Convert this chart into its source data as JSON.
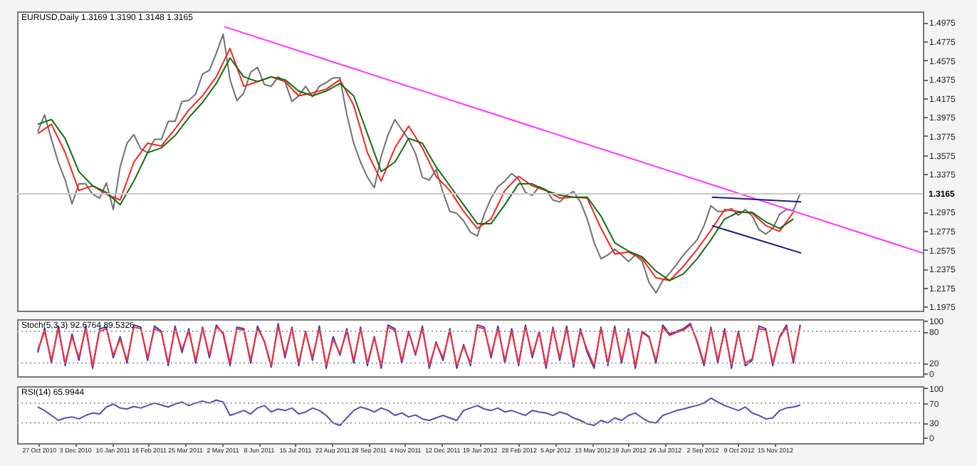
{
  "chart_data": [
    {
      "type": "line",
      "title": "EURUSD,Daily 1.3169 1.3190 1.3148 1.3165",
      "xlim": [
        "2010-10-05",
        "2013-04-15"
      ],
      "ylim": [
        1.1932,
        1.5091
      ],
      "yticks": [
        1.4975,
        1.4775,
        1.4575,
        1.4375,
        1.4175,
        1.3975,
        1.3775,
        1.3575,
        1.3375,
        1.2975,
        1.2775,
        1.2575,
        1.2375,
        1.2175,
        1.1975
      ],
      "tick_labels": "y",
      "x": [
        "2010-10-26",
        "2010-11-02",
        "2010-11-09",
        "2010-11-16",
        "2010-11-23",
        "2010-11-30",
        "2010-12-07",
        "2010-12-14",
        "2010-12-21",
        "2010-12-28",
        "2011-01-04",
        "2011-01-11",
        "2011-01-18",
        "2011-01-25",
        "2011-02-01",
        "2011-02-08",
        "2011-02-15",
        "2011-02-22",
        "2011-03-01",
        "2011-03-08",
        "2011-03-15",
        "2011-03-22",
        "2011-03-29",
        "2011-04-05",
        "2011-04-12",
        "2011-04-19",
        "2011-04-26",
        "2011-05-03",
        "2011-05-10",
        "2011-05-17",
        "2011-05-24",
        "2011-05-31",
        "2011-06-07",
        "2011-06-14",
        "2011-06-21",
        "2011-06-28",
        "2011-07-05",
        "2011-07-12",
        "2011-07-19",
        "2011-07-26",
        "2011-08-02",
        "2011-08-09",
        "2011-08-16",
        "2011-08-23",
        "2011-08-30",
        "2011-09-06",
        "2011-09-13",
        "2011-09-20",
        "2011-09-27",
        "2011-10-04",
        "2011-10-11",
        "2011-10-18",
        "2011-10-25",
        "2011-11-01",
        "2011-11-08",
        "2011-11-15",
        "2011-11-22",
        "2011-11-29",
        "2011-12-06",
        "2011-12-13",
        "2011-12-20",
        "2011-12-27",
        "2012-01-03",
        "2012-01-10",
        "2012-01-17",
        "2012-01-24",
        "2012-01-31",
        "2012-02-07",
        "2012-02-14",
        "2012-02-21",
        "2012-02-28",
        "2012-03-06",
        "2012-03-13",
        "2012-03-20",
        "2012-03-27",
        "2012-04-03",
        "2012-04-10",
        "2012-04-17",
        "2012-04-24",
        "2012-05-01",
        "2012-05-08",
        "2012-05-15",
        "2012-05-22",
        "2012-05-29",
        "2012-06-05",
        "2012-06-12",
        "2012-06-19",
        "2012-06-26",
        "2012-07-03",
        "2012-07-10",
        "2012-07-17",
        "2012-07-24",
        "2012-07-31",
        "2012-08-07",
        "2012-08-14",
        "2012-08-21",
        "2012-08-28",
        "2012-09-04",
        "2012-09-11",
        "2012-09-18",
        "2012-09-25",
        "2012-10-02",
        "2012-10-09",
        "2012-10-16",
        "2012-10-23",
        "2012-10-30",
        "2012-11-06",
        "2012-11-13",
        "2012-11-20",
        "2012-11-27",
        "2012-12-04",
        "2012-12-11"
      ],
      "series": [
        {
          "color": "#707070",
          "values": [
            1.382,
            1.4,
            1.374,
            1.35,
            1.331,
            1.306,
            1.327,
            1.327,
            1.316,
            1.312,
            1.328,
            1.3,
            1.345,
            1.37,
            1.379,
            1.364,
            1.36,
            1.374,
            1.374,
            1.393,
            1.393,
            1.414,
            1.415,
            1.422,
            1.443,
            1.447,
            1.465,
            1.485,
            1.437,
            1.415,
            1.423,
            1.445,
            1.45,
            1.432,
            1.43,
            1.44,
            1.435,
            1.414,
            1.42,
            1.43,
            1.419,
            1.43,
            1.434,
            1.439,
            1.439,
            1.4,
            1.37,
            1.35,
            1.334,
            1.323,
            1.356,
            1.379,
            1.395,
            1.384,
            1.374,
            1.359,
            1.334,
            1.331,
            1.342,
            1.318,
            1.298,
            1.296,
            1.288,
            1.276,
            1.272,
            1.295,
            1.312,
            1.324,
            1.33,
            1.338,
            1.332,
            1.318,
            1.315,
            1.324,
            1.321,
            1.31,
            1.308,
            1.315,
            1.319,
            1.308,
            1.29,
            1.265,
            1.248,
            1.252,
            1.258,
            1.252,
            1.245,
            1.252,
            1.245,
            1.223,
            1.212,
            1.225,
            1.233,
            1.242,
            1.252,
            1.26,
            1.268,
            1.283,
            1.304,
            1.298,
            1.298,
            1.301,
            1.294,
            1.3,
            1.293,
            1.279,
            1.274,
            1.28,
            1.295,
            1.3,
            1.299,
            1.317
          ]
        },
        {
          "color": "#ff2020",
          "x": [
            "2010-10-26",
            "2010-11-09",
            "2010-11-23",
            "2010-12-07",
            "2010-12-21",
            "2011-01-04",
            "2011-01-18",
            "2011-02-01",
            "2011-02-15",
            "2011-03-01",
            "2011-03-15",
            "2011-03-29",
            "2011-04-12",
            "2011-04-26",
            "2011-05-10",
            "2011-05-24",
            "2011-06-07",
            "2011-06-21",
            "2011-07-05",
            "2011-07-19",
            "2011-08-02",
            "2011-08-16",
            "2011-08-30",
            "2011-09-13",
            "2011-09-27",
            "2011-10-11",
            "2011-10-25",
            "2011-11-08",
            "2011-11-22",
            "2011-12-06",
            "2011-12-20",
            "2012-01-03",
            "2012-01-17",
            "2012-01-31",
            "2012-02-14",
            "2012-02-28",
            "2012-03-13",
            "2012-03-27",
            "2012-04-10",
            "2012-04-24",
            "2012-05-08",
            "2012-05-22",
            "2012-06-05",
            "2012-06-19",
            "2012-07-03",
            "2012-07-17",
            "2012-07-31",
            "2012-08-14",
            "2012-08-28",
            "2012-09-11",
            "2012-09-25",
            "2012-10-09",
            "2012-10-23",
            "2012-11-06",
            "2012-11-20",
            "2012-12-04"
          ],
          "values": [
            1.38,
            1.39,
            1.36,
            1.32,
            1.325,
            1.316,
            1.31,
            1.35,
            1.37,
            1.367,
            1.385,
            1.405,
            1.42,
            1.44,
            1.47,
            1.43,
            1.435,
            1.44,
            1.435,
            1.42,
            1.423,
            1.427,
            1.437,
            1.41,
            1.36,
            1.33,
            1.365,
            1.388,
            1.365,
            1.335,
            1.32,
            1.298,
            1.28,
            1.29,
            1.32,
            1.335,
            1.325,
            1.32,
            1.312,
            1.313,
            1.312,
            1.28,
            1.253,
            1.255,
            1.248,
            1.228,
            1.225,
            1.24,
            1.258,
            1.278,
            1.3,
            1.298,
            1.296,
            1.283,
            1.277,
            1.297
          ]
        },
        {
          "color": "#107010",
          "x": [
            "2010-10-26",
            "2010-11-09",
            "2010-11-23",
            "2010-12-07",
            "2010-12-21",
            "2011-01-04",
            "2011-01-18",
            "2011-02-01",
            "2011-02-15",
            "2011-03-01",
            "2011-03-15",
            "2011-03-29",
            "2011-04-12",
            "2011-04-26",
            "2011-05-10",
            "2011-05-24",
            "2011-06-07",
            "2011-06-21",
            "2011-07-05",
            "2011-07-19",
            "2011-08-02",
            "2011-08-16",
            "2011-08-30",
            "2011-09-13",
            "2011-09-27",
            "2011-10-11",
            "2011-10-25",
            "2011-11-08",
            "2011-11-22",
            "2011-12-06",
            "2011-12-20",
            "2012-01-03",
            "2012-01-17",
            "2012-01-31",
            "2012-02-14",
            "2012-02-28",
            "2012-03-13",
            "2012-03-27",
            "2012-04-10",
            "2012-04-24",
            "2012-05-08",
            "2012-05-22",
            "2012-06-05",
            "2012-06-19",
            "2012-07-03",
            "2012-07-17",
            "2012-07-31",
            "2012-08-14",
            "2012-08-28",
            "2012-09-11",
            "2012-09-25",
            "2012-10-09",
            "2012-10-23",
            "2012-11-06",
            "2012-11-20",
            "2012-12-04"
          ],
          "values": [
            1.39,
            1.395,
            1.375,
            1.34,
            1.325,
            1.318,
            1.305,
            1.33,
            1.36,
            1.365,
            1.378,
            1.397,
            1.413,
            1.433,
            1.46,
            1.44,
            1.435,
            1.44,
            1.437,
            1.425,
            1.42,
            1.425,
            1.433,
            1.42,
            1.38,
            1.34,
            1.35,
            1.375,
            1.37,
            1.345,
            1.325,
            1.305,
            1.285,
            1.285,
            1.305,
            1.327,
            1.327,
            1.32,
            1.315,
            1.313,
            1.313,
            1.293,
            1.265,
            1.256,
            1.25,
            1.235,
            1.225,
            1.232,
            1.248,
            1.268,
            1.29,
            1.297,
            1.297,
            1.287,
            1.28,
            1.29
          ]
        },
        {
          "color": "#ff33ff",
          "x": [
            "2011-05-04",
            "2013-04-15"
          ],
          "values": [
            1.493,
            1.254
          ]
        },
        {
          "color": "#1a1a8c",
          "x": [
            "2012-09-12",
            "2012-12-12"
          ],
          "values": [
            1.313,
            1.308
          ]
        },
        {
          "color": "#1a1a8c",
          "x": [
            "2012-09-12",
            "2012-12-12"
          ],
          "values": [
            1.283,
            1.254
          ]
        }
      ],
      "ref_lines": [
        {
          "axis": "y",
          "value": 1.3165,
          "label": "1.3165",
          "color": "#c8c8c8"
        }
      ]
    },
    {
      "type": "line",
      "title": "Stoch(5,3,3) 92.6764 89.5326",
      "xlim": [
        "2010-10-05",
        "2013-04-15"
      ],
      "ylim": [
        -5,
        103
      ],
      "yticks": [
        0,
        20,
        80,
        100
      ],
      "tick_labels": "y",
      "x": [
        "2010-10-26",
        "2010-11-02",
        "2010-11-09",
        "2010-11-16",
        "2010-11-23",
        "2010-11-30",
        "2010-12-07",
        "2010-12-14",
        "2010-12-21",
        "2010-12-28",
        "2011-01-04",
        "2011-01-11",
        "2011-01-18",
        "2011-01-25",
        "2011-02-01",
        "2011-02-08",
        "2011-02-15",
        "2011-02-22",
        "2011-03-01",
        "2011-03-08",
        "2011-03-15",
        "2011-03-22",
        "2011-03-29",
        "2011-04-05",
        "2011-04-12",
        "2011-04-19",
        "2011-04-26",
        "2011-05-03",
        "2011-05-10",
        "2011-05-17",
        "2011-05-24",
        "2011-05-31",
        "2011-06-07",
        "2011-06-14",
        "2011-06-21",
        "2011-06-28",
        "2011-07-05",
        "2011-07-12",
        "2011-07-19",
        "2011-07-26",
        "2011-08-02",
        "2011-08-09",
        "2011-08-16",
        "2011-08-23",
        "2011-08-30",
        "2011-09-06",
        "2011-09-13",
        "2011-09-20",
        "2011-09-27",
        "2011-10-04",
        "2011-10-11",
        "2011-10-18",
        "2011-10-25",
        "2011-11-01",
        "2011-11-08",
        "2011-11-15",
        "2011-11-22",
        "2011-11-29",
        "2011-12-06",
        "2011-12-13",
        "2011-12-20",
        "2011-12-27",
        "2012-01-03",
        "2012-01-10",
        "2012-01-17",
        "2012-01-24",
        "2012-01-31",
        "2012-02-07",
        "2012-02-14",
        "2012-02-21",
        "2012-02-28",
        "2012-03-06",
        "2012-03-13",
        "2012-03-20",
        "2012-03-27",
        "2012-04-03",
        "2012-04-10",
        "2012-04-17",
        "2012-04-24",
        "2012-05-01",
        "2012-05-08",
        "2012-05-15",
        "2012-05-22",
        "2012-05-29",
        "2012-06-05",
        "2012-06-12",
        "2012-06-19",
        "2012-06-26",
        "2012-07-03",
        "2012-07-10",
        "2012-07-17",
        "2012-07-24",
        "2012-07-31",
        "2012-08-07",
        "2012-08-14",
        "2012-08-21",
        "2012-08-28",
        "2012-09-04",
        "2012-09-11",
        "2012-09-18",
        "2012-09-25",
        "2012-10-02",
        "2012-10-09",
        "2012-10-16",
        "2012-10-23",
        "2012-10-30",
        "2012-11-06",
        "2012-11-13",
        "2012-11-20",
        "2012-11-27",
        "2012-12-04",
        "2012-12-11"
      ],
      "series": [
        {
          "color": "#3535c8",
          "values": [
            40,
            85,
            20,
            90,
            15,
            75,
            25,
            90,
            10,
            85,
            88,
            30,
            70,
            20,
            92,
            88,
            25,
            90,
            80,
            15,
            90,
            40,
            85,
            20,
            88,
            30,
            92,
            75,
            15,
            88,
            85,
            20,
            90,
            60,
            12,
            95,
            30,
            88,
            15,
            80,
            25,
            90,
            10,
            70,
            35,
            85,
            20,
            88,
            15,
            70,
            10,
            92,
            85,
            20,
            80,
            35,
            90,
            10,
            60,
            25,
            85,
            10,
            55,
            15,
            92,
            88,
            30,
            90,
            20,
            85,
            15,
            92,
            30,
            80,
            10,
            88,
            25,
            90,
            12,
            85,
            40,
            10,
            88,
            15,
            90,
            20,
            85,
            10,
            80,
            70,
            20,
            92,
            75,
            80,
            85,
            95,
            60,
            15,
            88,
            20,
            85,
            10,
            80,
            15,
            25,
            90,
            85,
            15,
            70,
            92,
            20,
            92.7
          ]
        },
        {
          "color": "#ff3030",
          "values": [
            45,
            80,
            25,
            85,
            20,
            70,
            30,
            85,
            15,
            80,
            85,
            35,
            65,
            25,
            88,
            85,
            30,
            85,
            78,
            20,
            85,
            45,
            80,
            25,
            85,
            35,
            88,
            78,
            20,
            85,
            82,
            25,
            85,
            62,
            15,
            90,
            35,
            85,
            20,
            78,
            30,
            85,
            15,
            65,
            38,
            80,
            25,
            85,
            20,
            68,
            15,
            88,
            82,
            25,
            78,
            38,
            85,
            15,
            58,
            30,
            80,
            15,
            52,
            20,
            88,
            85,
            35,
            85,
            25,
            80,
            20,
            88,
            35,
            78,
            15,
            85,
            30,
            85,
            18,
            80,
            45,
            15,
            85,
            20,
            85,
            25,
            80,
            15,
            78,
            68,
            25,
            88,
            72,
            78,
            82,
            92,
            62,
            20,
            85,
            25,
            80,
            15,
            78,
            20,
            28,
            85,
            82,
            20,
            68,
            88,
            25,
            89.5
          ]
        }
      ],
      "ref_lines": [
        {
          "axis": "y",
          "value": 80,
          "color": "#a0a0a0",
          "line_style": "dotted"
        },
        {
          "axis": "y",
          "value": 20,
          "color": "#a0a0a0",
          "line_style": "dotted"
        }
      ]
    },
    {
      "type": "line",
      "title": "RSI(14) 65.9944",
      "xlim": [
        "2010-10-05",
        "2013-04-15"
      ],
      "ylim": [
        -11,
        104
      ],
      "yticks": [
        0,
        30,
        70,
        100
      ],
      "xticks": [
        {
          "value": "2010-10-27",
          "label": "27 Oct 2010"
        },
        {
          "value": "2010-12-03",
          "label": "3 Dec 2010"
        },
        {
          "value": "2011-01-10",
          "label": "10 Jan 2011"
        },
        {
          "value": "2011-02-16",
          "label": "16 Feb 2011"
        },
        {
          "value": "2011-03-25",
          "label": "25 Mar 2011"
        },
        {
          "value": "2011-05-02",
          "label": "2 May 2011"
        },
        {
          "value": "2011-06-08",
          "label": "8 Jun 2011"
        },
        {
          "value": "2011-07-15",
          "label": "15 Jul 2011"
        },
        {
          "value": "2011-08-22",
          "label": "22 Aug 2011"
        },
        {
          "value": "2011-09-28",
          "label": "28 Sep 2011"
        },
        {
          "value": "2011-11-04",
          "label": "4 Nov 2011"
        },
        {
          "value": "2011-12-12",
          "label": "12 Dec 2011"
        },
        {
          "value": "2012-01-19",
          "label": "19 Jan 2012"
        },
        {
          "value": "2012-02-28",
          "label": "28 Feb 2012"
        },
        {
          "value": "2012-04-05",
          "label": "5 Apr 2012"
        },
        {
          "value": "2012-05-13",
          "label": "13 May 2012"
        },
        {
          "value": "2012-06-19",
          "label": "19 Jun 2012"
        },
        {
          "value": "2012-07-26",
          "label": "26 Jul 2012"
        },
        {
          "value": "2012-09-02",
          "label": "2 Sep 2012"
        },
        {
          "value": "2012-10-09",
          "label": "9 Oct 2012"
        },
        {
          "value": "2012-11-15",
          "label": "15 Nov 2012"
        }
      ],
      "x": [
        "2010-10-26",
        "2010-11-02",
        "2010-11-09",
        "2010-11-16",
        "2010-11-23",
        "2010-11-30",
        "2010-12-07",
        "2010-12-14",
        "2010-12-21",
        "2010-12-28",
        "2011-01-04",
        "2011-01-11",
        "2011-01-18",
        "2011-01-25",
        "2011-02-01",
        "2011-02-08",
        "2011-02-15",
        "2011-02-22",
        "2011-03-01",
        "2011-03-08",
        "2011-03-15",
        "2011-03-22",
        "2011-03-29",
        "2011-04-05",
        "2011-04-12",
        "2011-04-19",
        "2011-04-26",
        "2011-05-03",
        "2011-05-10",
        "2011-05-17",
        "2011-05-24",
        "2011-05-31",
        "2011-06-07",
        "2011-06-14",
        "2011-06-21",
        "2011-06-28",
        "2011-07-05",
        "2011-07-12",
        "2011-07-19",
        "2011-07-26",
        "2011-08-02",
        "2011-08-09",
        "2011-08-16",
        "2011-08-23",
        "2011-08-30",
        "2011-09-06",
        "2011-09-13",
        "2011-09-20",
        "2011-09-27",
        "2011-10-04",
        "2011-10-11",
        "2011-10-18",
        "2011-10-25",
        "2011-11-01",
        "2011-11-08",
        "2011-11-15",
        "2011-11-22",
        "2011-11-29",
        "2011-12-06",
        "2011-12-13",
        "2011-12-20",
        "2011-12-27",
        "2012-01-03",
        "2012-01-10",
        "2012-01-17",
        "2012-01-24",
        "2012-01-31",
        "2012-02-07",
        "2012-02-14",
        "2012-02-21",
        "2012-02-28",
        "2012-03-06",
        "2012-03-13",
        "2012-03-20",
        "2012-03-27",
        "2012-04-03",
        "2012-04-10",
        "2012-04-17",
        "2012-04-24",
        "2012-05-01",
        "2012-05-08",
        "2012-05-15",
        "2012-05-22",
        "2012-05-29",
        "2012-06-05",
        "2012-06-12",
        "2012-06-19",
        "2012-06-26",
        "2012-07-03",
        "2012-07-10",
        "2012-07-17",
        "2012-07-24",
        "2012-07-31",
        "2012-08-07",
        "2012-08-14",
        "2012-08-21",
        "2012-08-28",
        "2012-09-04",
        "2012-09-11",
        "2012-09-18",
        "2012-09-25",
        "2012-10-02",
        "2012-10-09",
        "2012-10-16",
        "2012-10-23",
        "2012-10-30",
        "2012-11-06",
        "2012-11-13",
        "2012-11-20",
        "2012-11-27",
        "2012-12-04",
        "2012-12-11"
      ],
      "series": [
        {
          "color": "#5050b0",
          "values": [
            62,
            55,
            45,
            35,
            40,
            42,
            38,
            45,
            50,
            48,
            62,
            68,
            60,
            58,
            63,
            60,
            65,
            70,
            66,
            62,
            68,
            72,
            65,
            70,
            74,
            70,
            76,
            72,
            45,
            50,
            55,
            48,
            60,
            65,
            52,
            58,
            55,
            60,
            48,
            52,
            60,
            55,
            45,
            30,
            25,
            40,
            55,
            62,
            58,
            52,
            60,
            55,
            45,
            50,
            42,
            46,
            38,
            35,
            40,
            45,
            40,
            35,
            55,
            60,
            65,
            58,
            55,
            60,
            52,
            55,
            50,
            45,
            55,
            52,
            50,
            45,
            52,
            48,
            40,
            35,
            28,
            25,
            35,
            30,
            40,
            35,
            45,
            50,
            40,
            32,
            30,
            45,
            50,
            55,
            58,
            62,
            65,
            70,
            80,
            72,
            65,
            60,
            55,
            62,
            50,
            45,
            38,
            40,
            55,
            60,
            62,
            66
          ]
        }
      ],
      "ref_lines": [
        {
          "axis": "y",
          "value": 70,
          "color": "#a0a0a0",
          "line_style": "dotted"
        },
        {
          "axis": "y",
          "value": 30,
          "color": "#a0a0a0",
          "line_style": "dotted"
        }
      ]
    }
  ]
}
